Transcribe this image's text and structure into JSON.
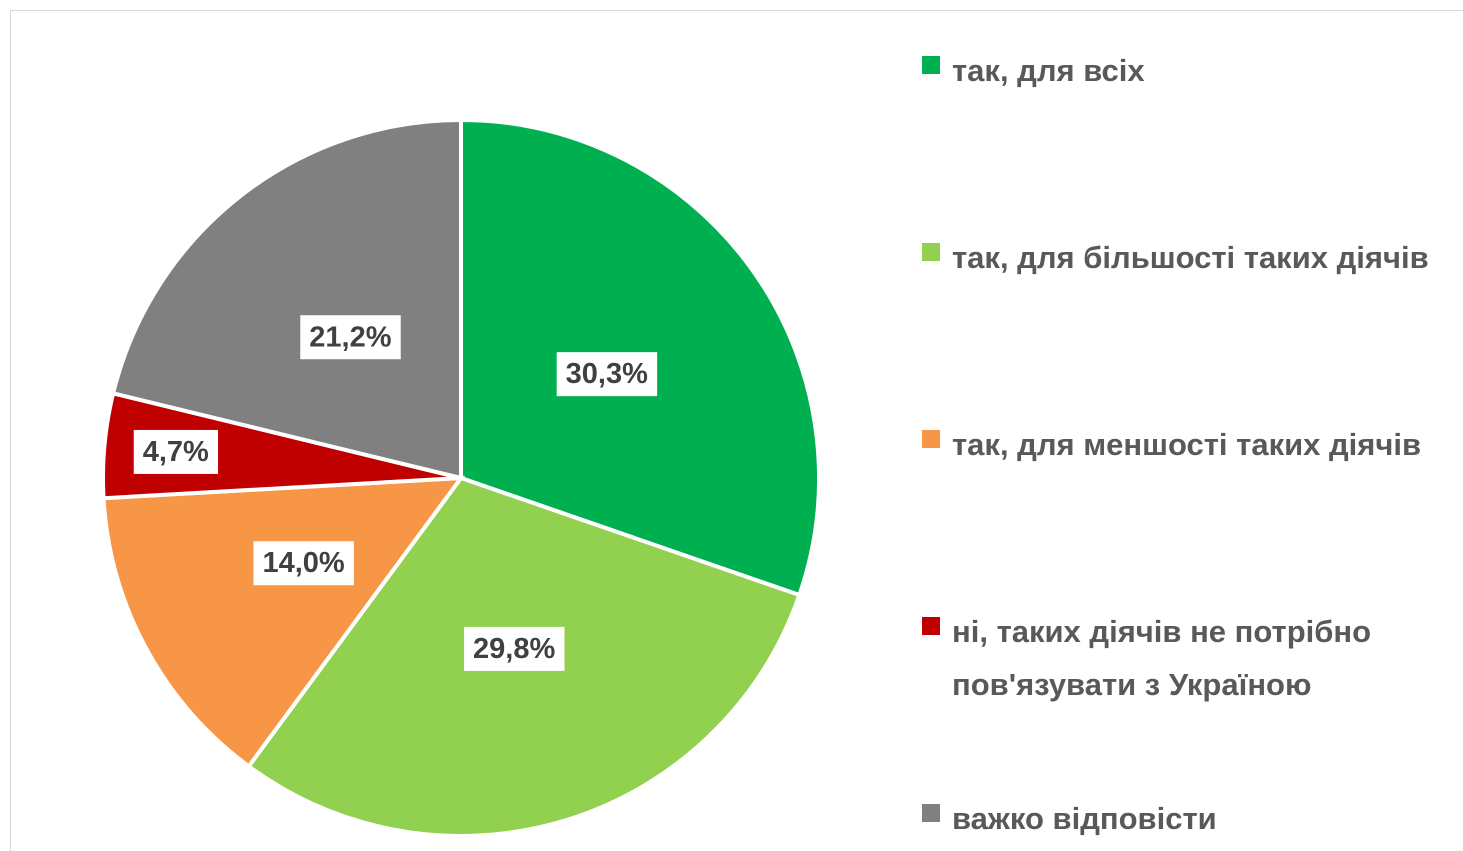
{
  "chart_data": {
    "type": "pie",
    "categories": [
      "так, для всіх",
      "так, для більшості таких діячів",
      "так, для меншості таких діячів",
      "ні, таких діячів не потрібно пов'язувати з Україною",
      "важко відповісти"
    ],
    "values": [
      30.3,
      29.8,
      14.0,
      4.7,
      21.2
    ],
    "value_labels": [
      "30,3%",
      "29,8%",
      "14,0%",
      "4,7%",
      "21,2%"
    ],
    "colors": [
      "#00b050",
      "#92d050",
      "#f79646",
      "#c00000",
      "#808080"
    ],
    "legend": "right"
  }
}
